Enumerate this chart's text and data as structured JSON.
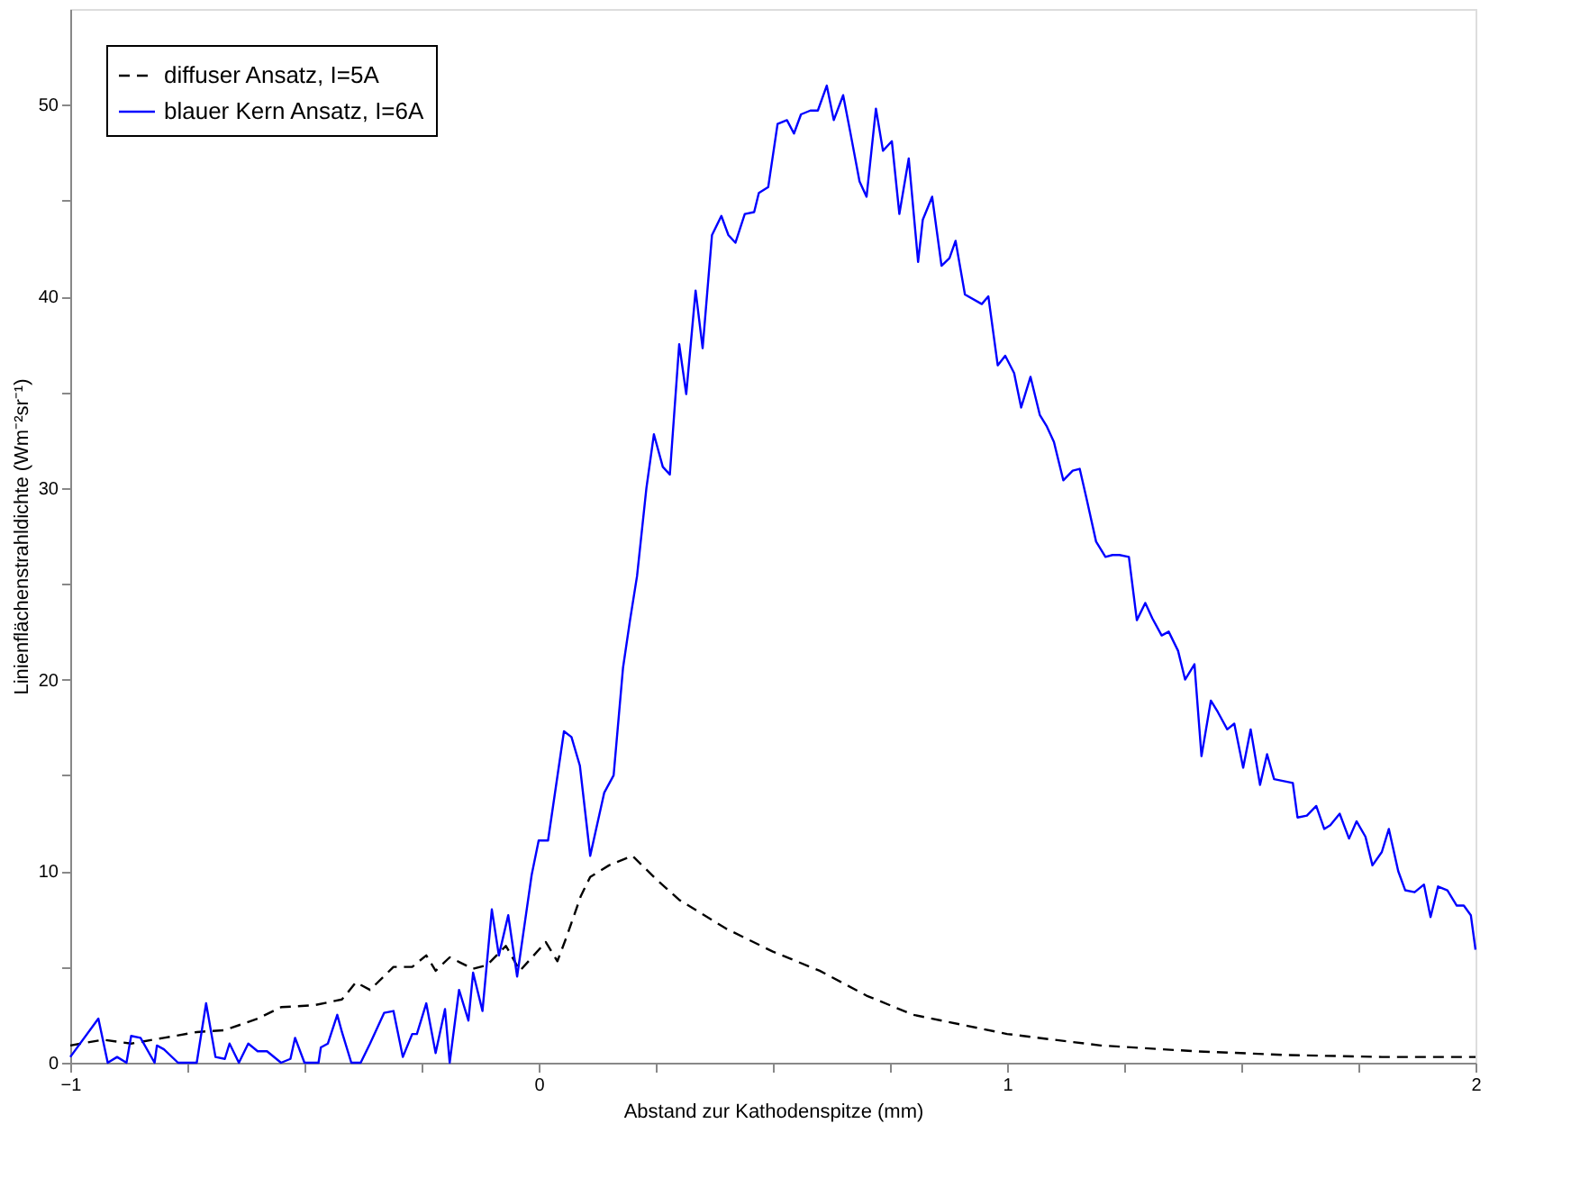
{
  "chart_data": {
    "type": "line",
    "xlabel": "Abstand zur Kathodenspitze (mm)",
    "ylabel": "Linienflächenstrahldichte (Wm⁻²sr⁻¹)",
    "xlim": [
      -1,
      2
    ],
    "xticks": [
      {
        "value": -1,
        "label": "−1"
      },
      {
        "value": -0.75,
        "label": null
      },
      {
        "value": -0.5,
        "label": null
      },
      {
        "value": -0.25,
        "label": null
      },
      0,
      {
        "value": 0.25,
        "label": null
      },
      {
        "value": 0.5,
        "label": null
      },
      {
        "value": 0.75,
        "label": null
      },
      1,
      {
        "value": 1.25,
        "label": null
      },
      {
        "value": 1.5,
        "label": null
      },
      {
        "value": 1.75,
        "label": null
      },
      2
    ],
    "ylim": [
      0,
      55
    ],
    "yticks": [
      0,
      {
        "value": 5,
        "label": null
      },
      10,
      {
        "value": 15,
        "label": null
      },
      20,
      {
        "value": 25,
        "label": null
      },
      30,
      {
        "value": 35,
        "label": null
      },
      40,
      {
        "value": 45,
        "label": null
      },
      50
    ],
    "grid": false,
    "legend": "top left",
    "marker": "none",
    "series": [
      {
        "name": "diffuser Ansatz, I=5A",
        "color": "#000000",
        "line_style": "dashed",
        "x": [
          -1.0,
          -0.93,
          -0.87,
          -0.8,
          -0.73,
          -0.67,
          -0.6,
          -0.55,
          -0.48,
          -0.42,
          -0.39,
          -0.36,
          -0.31,
          -0.27,
          -0.24,
          -0.22,
          -0.19,
          -0.14,
          -0.11,
          -0.07,
          -0.04,
          0.015,
          0.04,
          0.06,
          0.09,
          0.11,
          0.15,
          0.2,
          0.25,
          0.3,
          0.4,
          0.5,
          0.6,
          0.7,
          0.8,
          0.9,
          1.0,
          1.2,
          1.4,
          1.6,
          1.8,
          2.0
        ],
        "values": [
          0.9,
          1.2,
          1.0,
          1.3,
          1.6,
          1.7,
          2.3,
          2.9,
          3.0,
          3.3,
          4.2,
          3.8,
          5.0,
          5.0,
          5.6,
          4.8,
          5.5,
          4.9,
          5.1,
          6.1,
          4.8,
          6.3,
          5.3,
          6.6,
          8.7,
          9.7,
          10.3,
          10.8,
          9.6,
          8.5,
          7.0,
          5.8,
          4.8,
          3.5,
          2.5,
          2.0,
          1.5,
          0.9,
          0.6,
          0.4,
          0.3,
          0.3
        ]
      },
      {
        "name": "blauer Kern Ansatz, I=6A",
        "color": "#0000ff",
        "line_style": "solid",
        "x": [
          -1.0,
          -0.94,
          -0.92,
          -0.9,
          -0.88,
          -0.87,
          -0.85,
          -0.82,
          -0.815,
          -0.8,
          -0.77,
          -0.73,
          -0.71,
          -0.69,
          -0.67,
          -0.66,
          -0.64,
          -0.62,
          -0.6,
          -0.58,
          -0.55,
          -0.53,
          -0.52,
          -0.5,
          -0.47,
          -0.465,
          -0.45,
          -0.43,
          -0.42,
          -0.4,
          -0.38,
          -0.36,
          -0.33,
          -0.31,
          -0.29,
          -0.27,
          -0.26,
          -0.24,
          -0.22,
          -0.2,
          -0.19,
          -0.17,
          -0.15,
          -0.14,
          -0.12,
          -0.1,
          -0.085,
          -0.065,
          -0.046,
          -0.015,
          0.0,
          0.02,
          0.054,
          0.07,
          0.088,
          0.11,
          0.14,
          0.16,
          0.18,
          0.195,
          0.21,
          0.23,
          0.246,
          0.265,
          0.28,
          0.3,
          0.315,
          0.335,
          0.35,
          0.37,
          0.39,
          0.405,
          0.42,
          0.44,
          0.46,
          0.47,
          0.49,
          0.51,
          0.53,
          0.545,
          0.56,
          0.58,
          0.596,
          0.615,
          0.63,
          0.65,
          0.665,
          0.685,
          0.7,
          0.72,
          0.735,
          0.754,
          0.77,
          0.79,
          0.81,
          0.82,
          0.84,
          0.86,
          0.877,
          0.89,
          0.91,
          0.946,
          0.96,
          0.98,
          0.996,
          1.015,
          1.03,
          1.05,
          1.07,
          1.085,
          1.1,
          1.12,
          1.14,
          1.155,
          1.17,
          1.19,
          1.21,
          1.225,
          1.24,
          1.26,
          1.277,
          1.295,
          1.31,
          1.33,
          1.345,
          1.365,
          1.38,
          1.4,
          1.415,
          1.435,
          1.45,
          1.47,
          1.485,
          1.504,
          1.52,
          1.54,
          1.555,
          1.57,
          1.61,
          1.62,
          1.64,
          1.66,
          1.677,
          1.69,
          1.71,
          1.73,
          1.746,
          1.765,
          1.78,
          1.8,
          1.815,
          1.835,
          1.85,
          1.87,
          1.89,
          1.904,
          1.92,
          1.94,
          1.96,
          1.975,
          1.99,
          2.0
        ],
        "values": [
          0.3,
          2.3,
          0.0,
          0.3,
          0.0,
          1.4,
          1.3,
          0.0,
          0.9,
          0.7,
          0.0,
          0.0,
          3.1,
          0.3,
          0.2,
          1.0,
          0.0,
          1.0,
          0.6,
          0.6,
          0.0,
          0.2,
          1.3,
          0.0,
          0.0,
          0.8,
          1.0,
          2.5,
          1.6,
          0.0,
          0.0,
          1.0,
          2.6,
          2.7,
          0.3,
          1.5,
          1.5,
          3.1,
          0.5,
          2.8,
          0.0,
          3.8,
          2.2,
          4.7,
          2.7,
          8.0,
          5.6,
          7.7,
          4.5,
          9.8,
          11.6,
          11.6,
          17.3,
          17.0,
          15.5,
          10.8,
          14.1,
          15.0,
          20.6,
          23.1,
          25.4,
          30.0,
          32.8,
          31.1,
          30.7,
          37.5,
          34.9,
          40.3,
          37.3,
          43.2,
          44.2,
          43.2,
          42.8,
          44.3,
          44.4,
          45.4,
          45.7,
          49.0,
          49.2,
          48.5,
          49.5,
          49.7,
          49.7,
          51.0,
          49.2,
          50.5,
          48.6,
          46.0,
          45.2,
          49.8,
          47.6,
          48.1,
          44.3,
          47.2,
          41.8,
          44.0,
          45.2,
          41.6,
          42.0,
          42.9,
          40.1,
          39.6,
          40.0,
          36.4,
          36.9,
          36.0,
          34.2,
          35.8,
          33.8,
          33.2,
          32.4,
          30.4,
          30.9,
          31.0,
          29.4,
          27.2,
          26.4,
          26.5,
          26.5,
          26.4,
          23.1,
          24.0,
          23.2,
          22.3,
          22.5,
          21.5,
          20.0,
          20.8,
          16.0,
          18.9,
          18.3,
          17.4,
          17.7,
          15.4,
          17.4,
          14.5,
          16.1,
          14.8,
          14.6,
          12.8,
          12.9,
          13.4,
          12.2,
          12.4,
          13.0,
          11.7,
          12.6,
          11.8,
          10.3,
          11.0,
          12.2,
          10.0,
          9.0,
          8.9,
          9.3,
          7.6,
          9.2,
          9.0,
          8.2,
          8.2,
          7.7,
          5.9
        ]
      }
    ]
  }
}
